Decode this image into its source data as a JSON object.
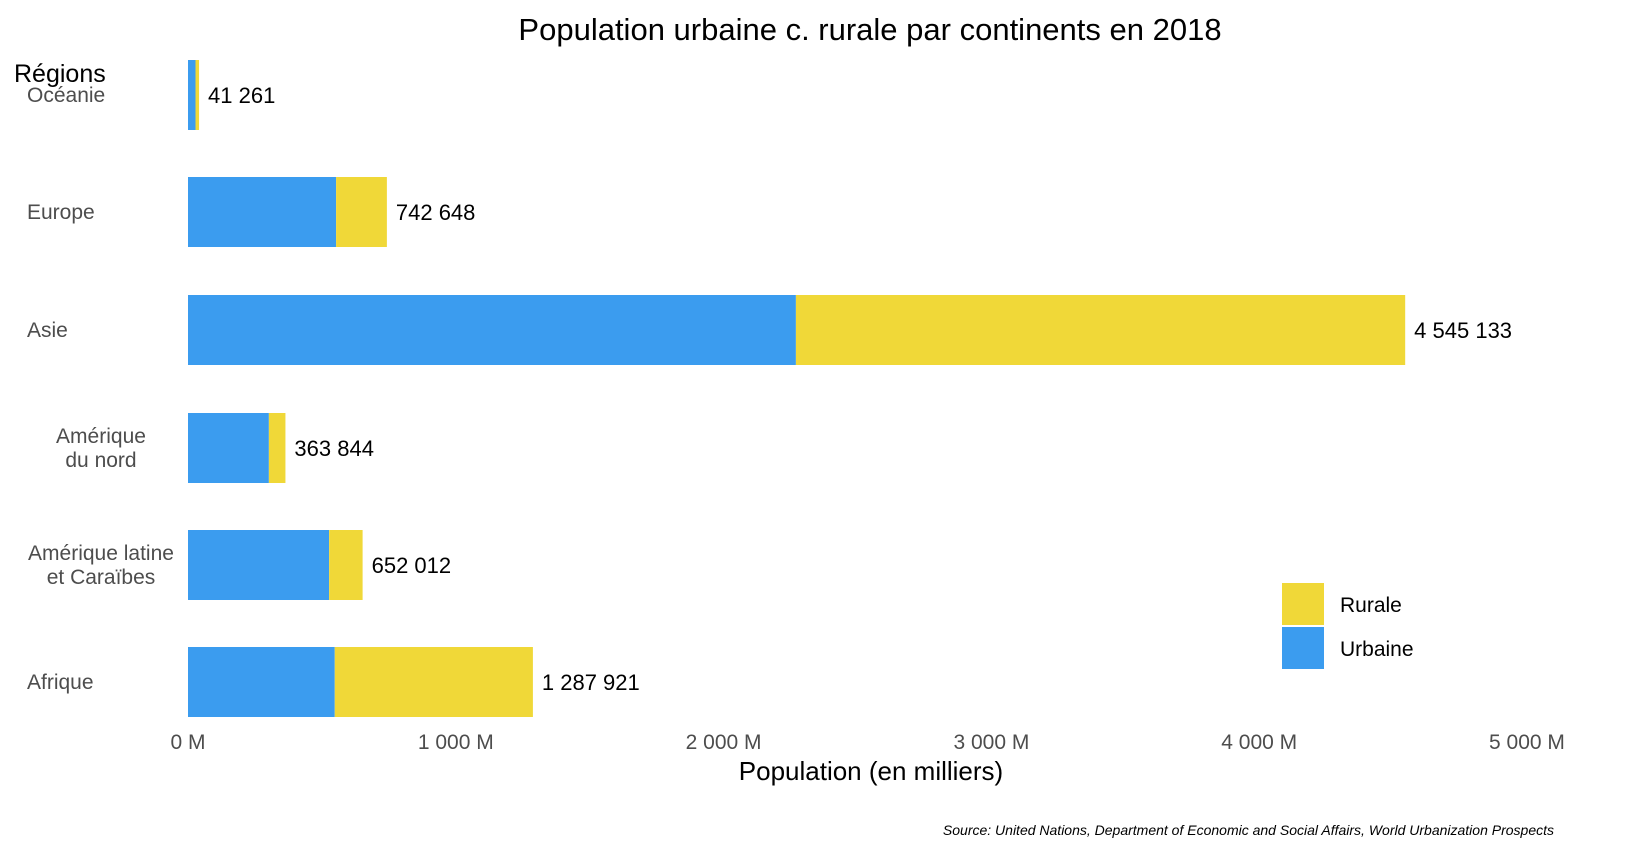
{
  "chart_data": {
    "type": "bar",
    "orientation": "horizontal",
    "stacked": true,
    "title": "Population urbaine c. rurale par continents en 2018",
    "ylabel": "Régions",
    "xlabel": "Population (en milliers)",
    "source": "Source: United Nations, Department of Economic and Social Affairs, World Urbanization Prospects",
    "xlim": [
      0,
      5000000
    ],
    "xticks": [
      0,
      1000000,
      2000000,
      3000000,
      4000000,
      5000000
    ],
    "xtick_labels": [
      "0 M",
      "1 000 M",
      "2 000 M",
      "3 000 M",
      "4 000 M",
      "5 000 M"
    ],
    "grid": false,
    "legend_position": "bottom-right",
    "categories": [
      [
        "Océanie"
      ],
      [
        "Europe"
      ],
      [
        "Asie"
      ],
      [
        "Amérique",
        "du nord"
      ],
      [
        "Amérique latine",
        "et Caraïbes"
      ],
      [
        "Afrique"
      ]
    ],
    "totals": [
      41261,
      742648,
      4545133,
      363844,
      652012,
      1287921
    ],
    "total_labels": [
      "41 261",
      "742 648",
      "4 545 133",
      "363 844",
      "652 012",
      "1 287 921"
    ],
    "series": [
      {
        "name": "Urbaine",
        "color": "#3b9cef",
        "values": [
          28000,
          553000,
          2270000,
          302000,
          527000,
          548000
        ]
      },
      {
        "name": "Rurale",
        "color": "#f0d838",
        "values": [
          13261,
          189648,
          2275133,
          61844,
          125012,
          739921
        ]
      }
    ],
    "legend_order": [
      "Rurale",
      "Urbaine"
    ]
  }
}
